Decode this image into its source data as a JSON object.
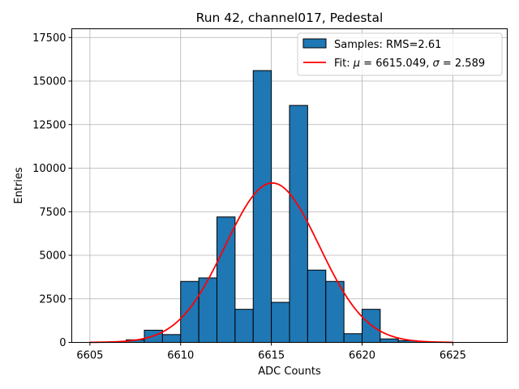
{
  "chart_data": {
    "type": "bar",
    "title": "Run 42, channel017, Pedestal",
    "xlabel": "ADC Counts",
    "ylabel": "Entries",
    "xlim": [
      6604,
      6628
    ],
    "ylim": [
      0,
      18000
    ],
    "xticks": [
      6605,
      6610,
      6615,
      6620,
      6625
    ],
    "yticks": [
      0,
      2500,
      5000,
      7500,
      10000,
      12500,
      15000,
      17500
    ],
    "grid": true,
    "legend_position": "top-right",
    "colors": {
      "bars": "#1f77b4",
      "bar_edge": "#000000",
      "fit": "#ff0000",
      "grid": "#b0b0b0"
    },
    "histogram": {
      "name": "Samples: RMS=2.61",
      "bin_width": 1,
      "bin_left_edges": [
        6606,
        6607,
        6608,
        6609,
        6610,
        6611,
        6612,
        6613,
        6614,
        6615,
        6616,
        6617,
        6618,
        6619,
        6620,
        6621,
        6622
      ],
      "values": [
        30,
        150,
        700,
        450,
        3500,
        3700,
        7200,
        1900,
        15600,
        2300,
        13600,
        4150,
        3500,
        500,
        1900,
        200,
        100
      ]
    },
    "fit": {
      "name_prefix": "Fit: ",
      "name_mu_symbol": "μ",
      "name_mu_text": " = 6615.049, ",
      "name_sigma_symbol": "σ",
      "name_sigma_text": " = 2.589",
      "type": "gaussian",
      "mu": 6615.049,
      "sigma": 2.589,
      "amplitude": 9150,
      "x_range": [
        6605,
        6625
      ]
    }
  }
}
